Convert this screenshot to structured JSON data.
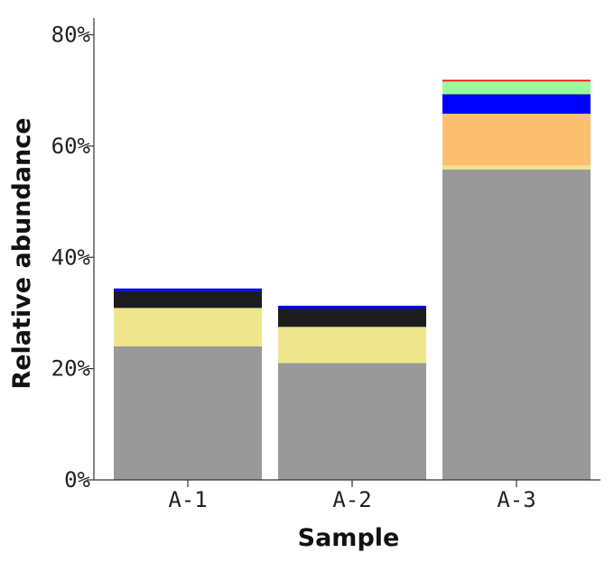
{
  "chart_data": {
    "type": "bar",
    "stacked": true,
    "xlabel": "Sample",
    "ylabel": "Relative abundance",
    "ylim": [
      0,
      83
    ],
    "y_ticks": [
      0,
      20,
      40,
      60,
      80
    ],
    "y_tick_suffix": "%",
    "categories": [
      "A-1",
      "A-2",
      "A-3"
    ],
    "grid": false,
    "series": [
      {
        "color": "#999999",
        "values": [
          24.0,
          21.0,
          55.8
        ]
      },
      {
        "color": "#eee58c",
        "values": [
          6.9,
          6.5,
          0.7
        ]
      },
      {
        "color": "#fcbf6f",
        "values": [
          0,
          0,
          9.3
        ]
      },
      {
        "color": "#1c1c1c",
        "values": [
          3.0,
          3.3,
          0
        ]
      },
      {
        "color": "#0000ff",
        "values": [
          0.5,
          0.5,
          3.5
        ]
      },
      {
        "color": "#98fb98",
        "values": [
          0,
          0,
          2.3
        ]
      },
      {
        "color": "#ee1111",
        "values": [
          0,
          0,
          0.3
        ]
      }
    ]
  }
}
